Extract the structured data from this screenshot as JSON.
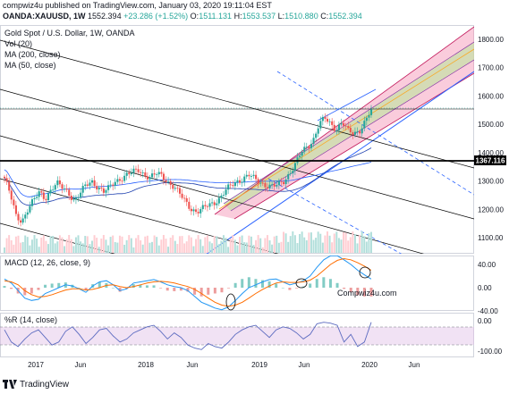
{
  "header": {
    "line1": "compwiz4u published on TradingView.com, January 03, 2020 19:11:04 EST",
    "symbol": "OANDA:XAUUSD, 1W",
    "last": "1552.394",
    "change": "+23.286 (+1.52%)",
    "open_label": "O:",
    "open": "1511.131",
    "high_label": "H:",
    "high": "1553.537",
    "low_label": "L:",
    "low": "1510.880",
    "close_label": "C:",
    "close": "1552.394"
  },
  "legend": {
    "title": "Gold Spot / U.S. Dollar, 1W, OANDA",
    "vol": "Vol (20)",
    "ma200": "MA (200, close)",
    "ma50": "MA (50, close)"
  },
  "macd": {
    "label": "MACD (12, 26, close, 9)",
    "watermark": "Compwiz4u.com"
  },
  "wr": {
    "label": "%R (14, close)"
  },
  "footer": {
    "brand": "TradingView"
  },
  "colors": {
    "up": "#26a69a",
    "down": "#ef5350",
    "macd": "#2196f3",
    "signal": "#ff6d00",
    "channel_fill": "#f48fb1",
    "ma200": "#2962ff",
    "ma50": "#1e40af",
    "hline": "#000000"
  },
  "chart_data": [
    {
      "type": "candlestick",
      "title": "Gold Spot / U.S. Dollar, 1W, OANDA",
      "x_ticks": [
        "2017",
        "Jun",
        "2018",
        "Jun",
        "2019",
        "Jun",
        "2020",
        "Jun"
      ],
      "y_ticks": [
        1100,
        1200,
        1300,
        1400,
        1500,
        1600,
        1700,
        1800
      ],
      "ylim": [
        1040,
        1840
      ],
      "price_label": "1367.116",
      "last_price": 1552.394,
      "close_path": [
        [
          0,
          1310
        ],
        [
          5,
          1250
        ],
        [
          10,
          1175
        ],
        [
          15,
          1160
        ],
        [
          20,
          1200
        ],
        [
          25,
          1230
        ],
        [
          30,
          1260
        ],
        [
          35,
          1240
        ],
        [
          40,
          1270
        ],
        [
          45,
          1290
        ],
        [
          50,
          1275
        ],
        [
          55,
          1260
        ],
        [
          60,
          1230
        ],
        [
          65,
          1255
        ],
        [
          70,
          1285
        ],
        [
          75,
          1300
        ],
        [
          80,
          1280
        ],
        [
          85,
          1260
        ],
        [
          90,
          1275
        ],
        [
          95,
          1300
        ],
        [
          100,
          1310
        ],
        [
          105,
          1320
        ],
        [
          110,
          1330
        ],
        [
          115,
          1340
        ],
        [
          120,
          1325
        ],
        [
          125,
          1310
        ],
        [
          130,
          1325
        ],
        [
          135,
          1320
        ],
        [
          140,
          1300
        ],
        [
          145,
          1280
        ],
        [
          150,
          1255
        ],
        [
          155,
          1230
        ],
        [
          160,
          1205
        ],
        [
          165,
          1190
        ],
        [
          170,
          1200
        ],
        [
          175,
          1215
        ],
        [
          180,
          1225
        ],
        [
          185,
          1240
        ],
        [
          190,
          1265
        ],
        [
          195,
          1285
        ],
        [
          200,
          1300
        ],
        [
          205,
          1310
        ],
        [
          210,
          1320
        ],
        [
          215,
          1305
        ],
        [
          220,
          1295
        ],
        [
          225,
          1285
        ],
        [
          230,
          1280
        ],
        [
          235,
          1285
        ],
        [
          240,
          1300
        ],
        [
          245,
          1330
        ],
        [
          250,
          1360
        ],
        [
          255,
          1400
        ],
        [
          260,
          1420
        ],
        [
          265,
          1445
        ],
        [
          270,
          1500
        ],
        [
          275,
          1520
        ],
        [
          280,
          1500
        ],
        [
          285,
          1485
        ],
        [
          290,
          1510
        ],
        [
          295,
          1475
        ],
        [
          300,
          1465
        ],
        [
          305,
          1480
        ],
        [
          310,
          1515
        ],
        [
          315,
          1552
        ]
      ]
    },
    {
      "type": "line",
      "title": "MACD (12, 26, close, 9)",
      "y_ticks": [
        -40,
        0,
        40
      ],
      "series": [
        {
          "name": "MACD",
          "values": [
            15,
            8,
            -5,
            -18,
            -22,
            -20,
            -10,
            -5,
            0,
            5,
            3,
            -2,
            -8,
            3,
            10,
            12,
            5,
            -5,
            -2,
            8,
            10,
            12,
            14,
            10,
            5,
            2,
            0,
            -5,
            -15,
            -25,
            -30,
            -35,
            -38,
            -33,
            -22,
            -10,
            0,
            5,
            10,
            14,
            15,
            10,
            5,
            8,
            12,
            20,
            35,
            48,
            55,
            55,
            48,
            40,
            30,
            22,
            15
          ]
        },
        {
          "name": "Signal",
          "values": [
            12,
            10,
            5,
            -5,
            -12,
            -16,
            -15,
            -12,
            -8,
            -4,
            -2,
            -2,
            -4,
            -3,
            0,
            4,
            5,
            2,
            0,
            2,
            5,
            8,
            10,
            11,
            10,
            8,
            5,
            2,
            -3,
            -10,
            -18,
            -25,
            -30,
            -32,
            -30,
            -25,
            -18,
            -10,
            -3,
            3,
            8,
            10,
            9,
            9,
            10,
            13,
            20,
            30,
            40,
            47,
            50,
            48,
            43,
            37,
            30
          ]
        }
      ]
    },
    {
      "type": "line",
      "title": "%R (14, close)",
      "y_ticks": [
        0,
        -100
      ],
      "series": [
        {
          "name": "%R",
          "values": [
            -30,
            -70,
            -85,
            -60,
            -40,
            -30,
            -55,
            -80,
            -70,
            -35,
            -20,
            -45,
            -75,
            -55,
            -30,
            -25,
            -50,
            -70,
            -60,
            -40,
            -30,
            -20,
            -15,
            -35,
            -60,
            -40,
            -55,
            -80,
            -90,
            -95,
            -75,
            -85,
            -90,
            -70,
            -45,
            -30,
            -20,
            -15,
            -35,
            -55,
            -30,
            -20,
            -25,
            -40,
            -60,
            -45,
            -10,
            -5,
            -8,
            -15,
            -70,
            -45,
            -85,
            -70,
            -5
          ]
        }
      ]
    }
  ]
}
